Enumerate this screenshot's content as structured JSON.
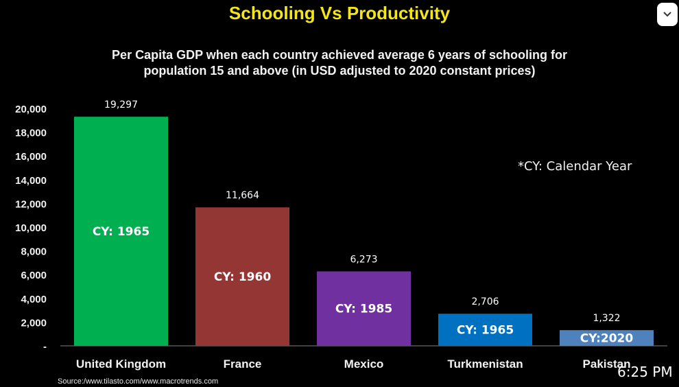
{
  "header": {
    "title": "Schooling Vs Productivity",
    "subtitle_line1": "Per Capita GDP when each country achieved average 6 years of schooling for",
    "subtitle_line2": "population 15 and above (in USD adjusted to 2020 constant prices)"
  },
  "note": "*CY: Calendar Year",
  "source": "Source:/www.tilasto.com/www.macrotrends.com",
  "status_bar": {
    "time": "6:25 PM"
  },
  "controls": {
    "collapse_icon": "chevron-down-icon"
  },
  "chart_data": {
    "type": "bar",
    "title": "Schooling Vs Productivity",
    "categories": [
      "United Kingdom",
      "France",
      "Mexico",
      "Turkmenistan",
      "Pakistan"
    ],
    "values": [
      19297,
      11664,
      6273,
      2706,
      1322
    ],
    "value_labels": [
      "19,297",
      "11,664",
      "6,273",
      "2,706",
      "1,322"
    ],
    "bar_labels": [
      "CY: 1965",
      "CY: 1960",
      "CY: 1985",
      "CY: 1965",
      "CY:2020"
    ],
    "colors": [
      "#00b050",
      "#943634",
      "#7030a0",
      "#0070c0",
      "#4f81bd"
    ],
    "yticks": [
      "-",
      "2,000",
      "4,000",
      "6,000",
      "8,000",
      "10,000",
      "12,000",
      "14,000",
      "16,000",
      "18,000",
      "20,000"
    ],
    "ylim": [
      0,
      20000
    ],
    "xlabel": "",
    "ylabel": "",
    "grid": false,
    "legend": "none"
  }
}
